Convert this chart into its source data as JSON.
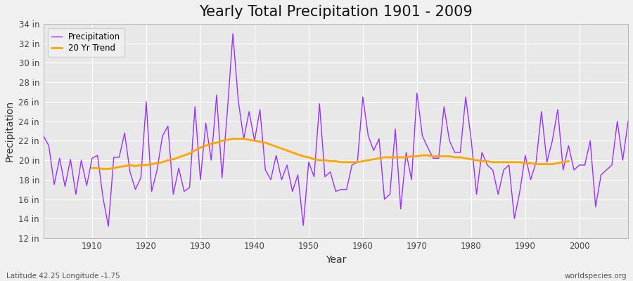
{
  "title": "Yearly Total Precipitation 1901 - 2009",
  "xlabel": "Year",
  "ylabel": "Precipitation",
  "footnote_left": "Latitude 42.25 Longitude -1.75",
  "footnote_right": "worldspecies.org",
  "precip_color": "#9B30FF",
  "trend_color": "#FFA500",
  "fig_bg_color": "#F0F0F0",
  "plot_bg_color": "#E8E8E8",
  "grid_color": "#FFFFFF",
  "ylim": [
    12,
    34
  ],
  "yticks": [
    12,
    14,
    16,
    18,
    20,
    22,
    24,
    26,
    28,
    30,
    32,
    34
  ],
  "xlim": [
    1901,
    2009
  ],
  "xticks": [
    1910,
    1920,
    1930,
    1940,
    1950,
    1960,
    1970,
    1980,
    1990,
    2000
  ],
  "years": [
    1901,
    1902,
    1903,
    1904,
    1905,
    1906,
    1907,
    1908,
    1909,
    1910,
    1911,
    1912,
    1913,
    1914,
    1915,
    1916,
    1917,
    1918,
    1919,
    1920,
    1921,
    1922,
    1923,
    1924,
    1925,
    1926,
    1927,
    1928,
    1929,
    1930,
    1931,
    1932,
    1933,
    1934,
    1935,
    1936,
    1937,
    1938,
    1939,
    1940,
    1941,
    1942,
    1943,
    1944,
    1945,
    1946,
    1947,
    1948,
    1949,
    1950,
    1951,
    1952,
    1953,
    1954,
    1955,
    1956,
    1957,
    1958,
    1959,
    1960,
    1961,
    1962,
    1963,
    1964,
    1965,
    1966,
    1967,
    1968,
    1969,
    1970,
    1971,
    1972,
    1973,
    1974,
    1975,
    1976,
    1977,
    1978,
    1979,
    1980,
    1981,
    1982,
    1983,
    1984,
    1985,
    1986,
    1987,
    1988,
    1989,
    1990,
    1991,
    1992,
    1993,
    1994,
    1995,
    1996,
    1997,
    1998,
    1999,
    2000,
    2001,
    2002,
    2003,
    2004,
    2005,
    2006,
    2007,
    2008,
    2009
  ],
  "precip": [
    22.5,
    21.5,
    17.5,
    20.2,
    17.3,
    20.1,
    16.5,
    20.0,
    17.4,
    20.2,
    20.5,
    16.2,
    13.2,
    20.3,
    20.3,
    22.8,
    18.8,
    17.0,
    18.2,
    26.0,
    16.8,
    19.0,
    22.5,
    23.5,
    16.5,
    19.2,
    16.8,
    17.2,
    25.5,
    18.0,
    23.8,
    20.0,
    26.7,
    18.2,
    25.2,
    33.0,
    26.1,
    22.2,
    25.0,
    22.0,
    25.2,
    19.0,
    18.0,
    20.5,
    18.0,
    19.5,
    16.8,
    18.5,
    13.3,
    19.8,
    18.3,
    25.8,
    18.3,
    18.8,
    16.8,
    17.0,
    17.0,
    19.5,
    19.8,
    26.5,
    22.5,
    21.0,
    22.2,
    16.0,
    16.5,
    23.2,
    15.0,
    20.8,
    18.0,
    26.9,
    22.5,
    21.3,
    20.2,
    20.2,
    25.5,
    22.0,
    20.8,
    20.8,
    26.5,
    22.2,
    16.5,
    20.8,
    19.5,
    19.0,
    16.5,
    19.0,
    19.5,
    14.0,
    16.8,
    20.5,
    18.0,
    19.8,
    25.0,
    19.8,
    22.0,
    25.2,
    19.0,
    21.5,
    19.0,
    19.5,
    19.5,
    22.0,
    15.2,
    18.5,
    19.0,
    19.5,
    24.0,
    20.0,
    24.0
  ],
  "trend": [
    null,
    null,
    null,
    null,
    null,
    null,
    null,
    null,
    null,
    19.2,
    19.2,
    19.1,
    19.1,
    19.2,
    19.3,
    19.4,
    19.5,
    19.4,
    19.5,
    19.5,
    19.6,
    19.7,
    19.8,
    20.0,
    20.1,
    20.3,
    20.5,
    20.7,
    21.0,
    21.3,
    21.5,
    21.7,
    21.8,
    22.0,
    22.1,
    22.2,
    22.2,
    22.2,
    22.1,
    22.0,
    21.9,
    21.8,
    21.6,
    21.4,
    21.2,
    21.0,
    20.8,
    20.6,
    20.4,
    20.3,
    20.1,
    20.0,
    20.0,
    19.9,
    19.9,
    19.8,
    19.8,
    19.8,
    19.8,
    19.9,
    20.0,
    20.1,
    20.2,
    20.3,
    20.3,
    20.3,
    20.3,
    20.3,
    20.4,
    20.4,
    20.5,
    20.5,
    20.4,
    20.4,
    20.4,
    20.4,
    20.3,
    20.3,
    20.2,
    20.1,
    20.0,
    19.9,
    19.9,
    19.8,
    19.8,
    19.8,
    19.8,
    19.8,
    19.8,
    19.7,
    19.7,
    19.6,
    19.6,
    19.6,
    19.6,
    19.7,
    19.8,
    19.9
  ],
  "legend_precip": "Precipitation",
  "legend_trend": "20 Yr Trend",
  "title_fontsize": 15,
  "axis_label_fontsize": 10,
  "tick_fontsize": 8.5,
  "legend_fontsize": 8.5,
  "footnote_fontsize": 7.5
}
